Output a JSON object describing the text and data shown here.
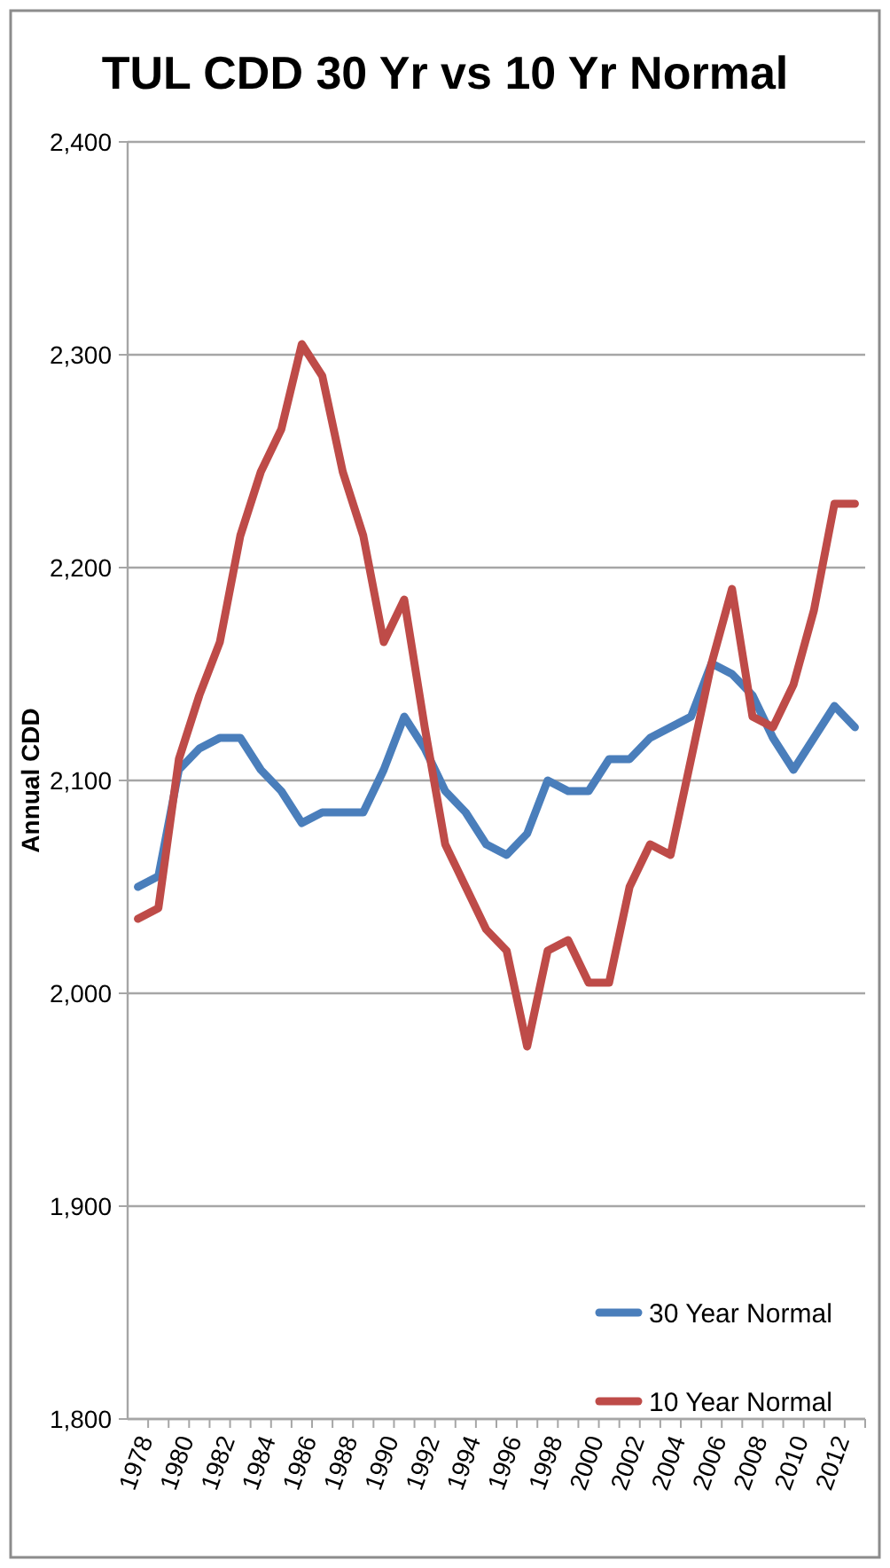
{
  "chart_data": {
    "type": "line",
    "title": "TUL CDD 30 Yr vs 10 Yr Normal",
    "ylabel": "Annual CDD",
    "categories": [
      "1978",
      null,
      "1980",
      null,
      "1982",
      null,
      "1984",
      null,
      "1986",
      null,
      "1988",
      null,
      "1990",
      null,
      "1992",
      null,
      "1994",
      null,
      "1996",
      null,
      "1998",
      null,
      "2000",
      null,
      "2002",
      null,
      "2004",
      null,
      "2006",
      null,
      "2008",
      null,
      "2010",
      null,
      "2012",
      null
    ],
    "series": [
      {
        "name": "30 Year Normal",
        "color": "#4a7ebb",
        "values": [
          2050,
          2055,
          2105,
          2115,
          2120,
          2120,
          2105,
          2095,
          2080,
          2085,
          2085,
          2085,
          2105,
          2130,
          2115,
          2095,
          2085,
          2070,
          2065,
          2075,
          2100,
          2095,
          2095,
          2110,
          2110,
          2120,
          2125,
          2130,
          2155,
          2150,
          2140,
          2120,
          2105,
          2120,
          2135,
          2125
        ]
      },
      {
        "name": "10 Year Normal",
        "color": "#be4b48",
        "values": [
          2035,
          2040,
          2110,
          2140,
          2165,
          2215,
          2245,
          2265,
          2305,
          2290,
          2245,
          2215,
          2165,
          2185,
          2125,
          2070,
          2050,
          2030,
          2020,
          1975,
          2020,
          2025,
          2005,
          2005,
          2050,
          2070,
          2065,
          2110,
          2155,
          2190,
          2130,
          2125,
          2145,
          2180,
          2230,
          2230
        ]
      }
    ],
    "ylim": [
      1800,
      2400
    ],
    "yticks": [
      {
        "value": 1800,
        "label": "1,800"
      },
      {
        "value": 1900,
        "label": "1,900"
      },
      {
        "value": 2000,
        "label": "2,000"
      },
      {
        "value": 2100,
        "label": "2,100"
      },
      {
        "value": 2200,
        "label": "2,200"
      },
      {
        "value": 2300,
        "label": "2,300"
      },
      {
        "value": 2400,
        "label": "2,400"
      }
    ],
    "grid": "y",
    "legend": "bottom right"
  }
}
